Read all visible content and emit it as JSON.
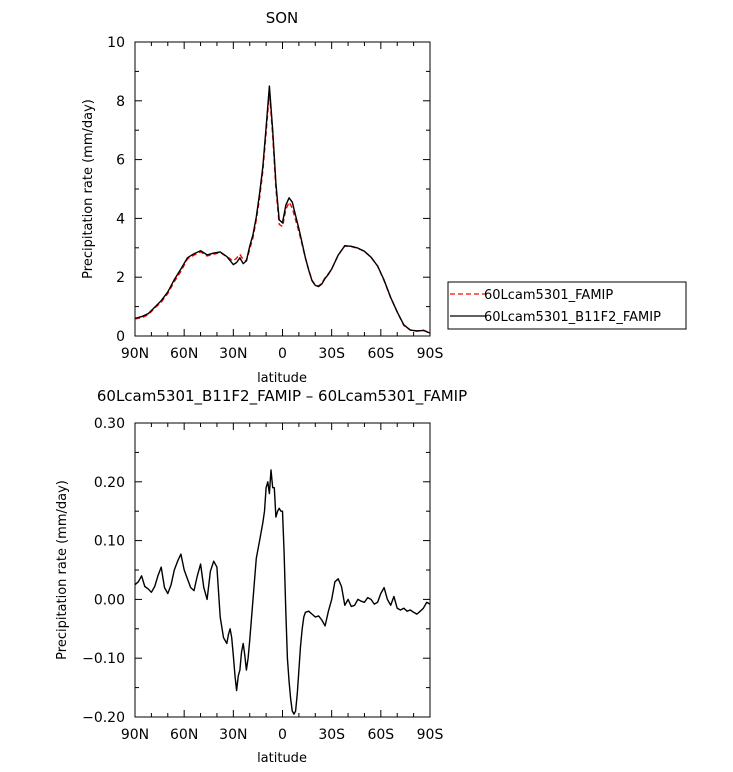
{
  "chart_data": [
    {
      "type": "line",
      "title": "SON",
      "xlabel": "latitude",
      "ylabel": "Precipitation rate (mm/day)",
      "xlim": [
        90,
        -90
      ],
      "ylim": [
        0,
        10
      ],
      "x_ticks": [
        90,
        60,
        30,
        0,
        -30,
        -60,
        -90
      ],
      "x_tick_labels": [
        "90N",
        "60N",
        "30N",
        "0",
        "30S",
        "60S",
        "90S"
      ],
      "y_ticks": [
        0,
        2,
        4,
        6,
        8,
        10
      ],
      "y_tick_labels": [
        "0",
        "2",
        "4",
        "6",
        "8",
        "10"
      ],
      "legend": "outside-right",
      "series": [
        {
          "name": "60Lcam5301_FAMIP",
          "color": "#ff0000",
          "dash": "dashed",
          "x": [
            90,
            86,
            82,
            78,
            74,
            70,
            66,
            62,
            58,
            54,
            50,
            46,
            42,
            38,
            34,
            30,
            28,
            26,
            24,
            22,
            20,
            18,
            16,
            14,
            12,
            10,
            8,
            6,
            4,
            2,
            0,
            -2,
            -4,
            -6,
            -8,
            -10,
            -12,
            -14,
            -16,
            -18,
            -20,
            -22,
            -24,
            -26,
            -28,
            -30,
            -34,
            -38,
            -42,
            -46,
            -50,
            -54,
            -58,
            -62,
            -66,
            -70,
            -74,
            -78,
            -82,
            -86,
            -90
          ],
          "y": [
            0.58,
            0.62,
            0.72,
            0.95,
            1.15,
            1.45,
            1.85,
            2.2,
            2.62,
            2.75,
            2.86,
            2.72,
            2.78,
            2.84,
            2.7,
            2.55,
            2.65,
            2.78,
            2.6,
            2.55,
            2.95,
            3.35,
            3.95,
            4.7,
            5.6,
            6.9,
            8.3,
            6.8,
            5.0,
            3.8,
            3.72,
            4.3,
            4.55,
            4.35,
            3.95,
            3.55,
            3.1,
            2.65,
            2.25,
            1.9,
            1.72,
            1.7,
            1.8,
            1.98,
            2.12,
            2.28,
            2.75,
            3.06,
            3.04,
            2.98,
            2.88,
            2.68,
            2.38,
            1.88,
            1.3,
            0.82,
            0.36,
            0.2,
            0.17,
            0.2,
            0.1
          ]
        },
        {
          "name": "60Lcam5301_B11F2_FAMIP",
          "color": "#000000",
          "dash": "solid",
          "x": [
            90,
            86,
            82,
            78,
            74,
            70,
            66,
            62,
            58,
            54,
            50,
            46,
            42,
            38,
            34,
            30,
            28,
            26,
            24,
            22,
            20,
            18,
            16,
            14,
            12,
            10,
            8,
            6,
            4,
            2,
            0,
            -2,
            -4,
            -6,
            -8,
            -10,
            -12,
            -14,
            -16,
            -18,
            -20,
            -22,
            -24,
            -26,
            -28,
            -30,
            -34,
            -38,
            -42,
            -46,
            -50,
            -54,
            -58,
            -62,
            -66,
            -70,
            -74,
            -78,
            -82,
            -86,
            -90
          ],
          "y": [
            0.6,
            0.66,
            0.76,
            0.98,
            1.2,
            1.5,
            1.92,
            2.28,
            2.66,
            2.8,
            2.9,
            2.76,
            2.82,
            2.86,
            2.7,
            2.43,
            2.5,
            2.66,
            2.46,
            2.56,
            3.05,
            3.45,
            4.05,
            4.85,
            5.75,
            7.1,
            8.5,
            7.0,
            5.2,
            3.95,
            3.85,
            4.45,
            4.7,
            4.55,
            4.1,
            3.65,
            3.15,
            2.66,
            2.24,
            1.88,
            1.72,
            1.68,
            1.77,
            1.96,
            2.1,
            2.28,
            2.75,
            3.07,
            3.05,
            2.99,
            2.88,
            2.68,
            2.38,
            1.9,
            1.31,
            0.82,
            0.38,
            0.2,
            0.17,
            0.19,
            0.1
          ]
        }
      ]
    },
    {
      "type": "line",
      "title": "60Lcam5301_B11F2_FAMIP – 60Lcam5301_FAMIP",
      "xlabel": "latitude",
      "ylabel": "Precipitation rate (mm/day)",
      "xlim": [
        90,
        -90
      ],
      "ylim": [
        -0.2,
        0.3
      ],
      "x_ticks": [
        90,
        60,
        30,
        0,
        -30,
        -60,
        -90
      ],
      "x_tick_labels": [
        "90N",
        "60N",
        "30N",
        "0",
        "30S",
        "60S",
        "90S"
      ],
      "y_ticks": [
        -0.2,
        -0.1,
        0,
        0.1,
        0.2,
        0.3
      ],
      "y_tick_labels": [
        "−0.20",
        "−0.10",
        "0.00",
        "0.10",
        "0.20",
        "0.30"
      ],
      "series": [
        {
          "color": "#000000",
          "dash": "solid",
          "x": [
            90,
            88,
            86,
            84,
            82,
            80,
            78,
            76,
            74,
            72,
            70,
            68,
            66,
            64,
            62,
            60,
            58,
            56,
            54,
            52,
            50,
            48,
            46,
            44,
            42,
            40,
            38,
            36,
            34,
            33,
            32,
            31,
            30,
            29,
            28,
            27,
            26,
            25,
            24,
            23,
            22,
            21,
            20,
            18,
            16,
            14,
            12,
            11,
            10,
            9,
            8,
            7,
            6,
            5,
            4,
            3,
            2,
            1,
            0,
            -1,
            -2,
            -3,
            -4,
            -5,
            -6,
            -7,
            -8,
            -9,
            -10,
            -11,
            -12,
            -13,
            -14,
            -16,
            -18,
            -20,
            -22,
            -24,
            -26,
            -28,
            -30,
            -32,
            -34,
            -36,
            -38,
            -40,
            -42,
            -44,
            -46,
            -48,
            -50,
            -52,
            -54,
            -56,
            -58,
            -60,
            -62,
            -64,
            -66,
            -68,
            -70,
            -72,
            -74,
            -76,
            -78,
            -80,
            -82,
            -84,
            -86,
            -88,
            -90
          ],
          "y": [
            0.025,
            0.03,
            0.04,
            0.022,
            0.018,
            0.012,
            0.022,
            0.04,
            0.055,
            0.02,
            0.01,
            0.025,
            0.05,
            0.065,
            0.077,
            0.05,
            0.035,
            0.02,
            0.015,
            0.04,
            0.06,
            0.02,
            0.0,
            0.048,
            0.065,
            0.055,
            -0.03,
            -0.065,
            -0.075,
            -0.06,
            -0.05,
            -0.065,
            -0.095,
            -0.13,
            -0.155,
            -0.13,
            -0.12,
            -0.09,
            -0.075,
            -0.095,
            -0.12,
            -0.1,
            -0.07,
            0.0,
            0.07,
            0.1,
            0.13,
            0.15,
            0.19,
            0.2,
            0.18,
            0.22,
            0.19,
            0.19,
            0.14,
            0.15,
            0.155,
            0.15,
            0.15,
            0.08,
            -0.02,
            -0.1,
            -0.14,
            -0.17,
            -0.19,
            -0.195,
            -0.19,
            -0.16,
            -0.12,
            -0.08,
            -0.05,
            -0.03,
            -0.022,
            -0.02,
            -0.025,
            -0.03,
            -0.028,
            -0.035,
            -0.045,
            -0.02,
            0.0,
            0.03,
            0.035,
            0.022,
            -0.01,
            0.0,
            -0.012,
            -0.01,
            0.0,
            -0.003,
            -0.005,
            0.003,
            0.0,
            -0.008,
            -0.005,
            0.01,
            0.02,
            0.0,
            -0.01,
            0.005,
            -0.015,
            -0.018,
            -0.015,
            -0.02,
            -0.018,
            -0.022,
            -0.025,
            -0.02,
            -0.015,
            -0.005,
            -0.008
          ]
        }
      ]
    }
  ]
}
